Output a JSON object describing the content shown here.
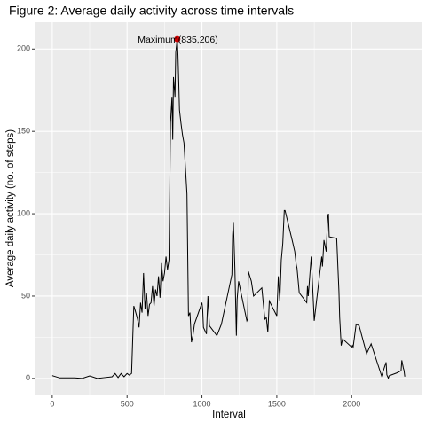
{
  "chart_data": {
    "type": "line",
    "title": "Figure 2: Average daily activity across time intervals",
    "x_label": "Interval",
    "y_label": "Average daily activity (no. of steps)",
    "x": [
      0,
      50,
      100,
      150,
      200,
      250,
      300,
      350,
      400,
      420,
      440,
      460,
      480,
      500,
      515,
      530,
      545,
      555,
      570,
      580,
      590,
      600,
      610,
      620,
      630,
      640,
      650,
      660,
      670,
      680,
      690,
      700,
      710,
      720,
      730,
      740,
      750,
      760,
      770,
      780,
      790,
      800,
      805,
      810,
      820,
      825,
      835,
      840,
      845,
      850,
      860,
      870,
      880,
      900,
      910,
      920,
      930,
      940,
      950,
      1000,
      1005,
      1010,
      1030,
      1040,
      1050,
      1100,
      1130,
      1200,
      1205,
      1210,
      1220,
      1230,
      1235,
      1245,
      1300,
      1305,
      1310,
      1330,
      1345,
      1400,
      1420,
      1430,
      1440,
      1450,
      1500,
      1510,
      1520,
      1530,
      1540,
      1550,
      1555,
      1605,
      1620,
      1630,
      1635,
      1650,
      1700,
      1705,
      1710,
      1730,
      1750,
      1800,
      1805,
      1815,
      1830,
      1840,
      1845,
      1850,
      1900,
      1915,
      1920,
      1930,
      1940,
      2000,
      2005,
      2010,
      2030,
      2050,
      2100,
      2130,
      2200,
      2230,
      2235,
      2245,
      2250,
      2300,
      2330,
      2335,
      2345,
      2350,
      2355
    ],
    "series": [
      {
        "name": "Average daily activity",
        "color": "#000000",
        "values": [
          1.7,
          0.3,
          0.3,
          0.3,
          0,
          1.5,
          0,
          0.5,
          1,
          3,
          0.5,
          3,
          1,
          3,
          2,
          3,
          44,
          41,
          36,
          31,
          46,
          40,
          64,
          42,
          52,
          38,
          45,
          46,
          56,
          44,
          54,
          50,
          62,
          49,
          70,
          59,
          64,
          74,
          66,
          72,
          155,
          171,
          145,
          183,
          171,
          198,
          206,
          196,
          180,
          163,
          155,
          148,
          143,
          112,
          38,
          40,
          22,
          26,
          33,
          46,
          42,
          31,
          27,
          50,
          32,
          26,
          33,
          63,
          87,
          95,
          67,
          26,
          48,
          59,
          35,
          36,
          65,
          59,
          50,
          55,
          36,
          37,
          28,
          47,
          38,
          62,
          47,
          72,
          82,
          102,
          102,
          83,
          77,
          69,
          67,
          52,
          46,
          56,
          50,
          74,
          35,
          74,
          68,
          84,
          77,
          98,
          100,
          86,
          85,
          53,
          37,
          20,
          24,
          19,
          20,
          19,
          33,
          32,
          15,
          21,
          1.5,
          9.8,
          2.2,
          0.1,
          1.6,
          3.3,
          4.7,
          11,
          6.4,
          4.8,
          1.1
        ]
      }
    ],
    "annotation": {
      "text": "Maximum(835,206)",
      "x": 835,
      "y": 206,
      "color": "#cc0000"
    },
    "xlim": [
      -117.75,
      2472.75
    ],
    "xticks": [
      0,
      500,
      1000,
      1500,
      2000
    ],
    "ylim": [
      -10.3,
      216.3
    ],
    "yticks": [
      0,
      50,
      100,
      150,
      200
    ],
    "grid": true
  }
}
